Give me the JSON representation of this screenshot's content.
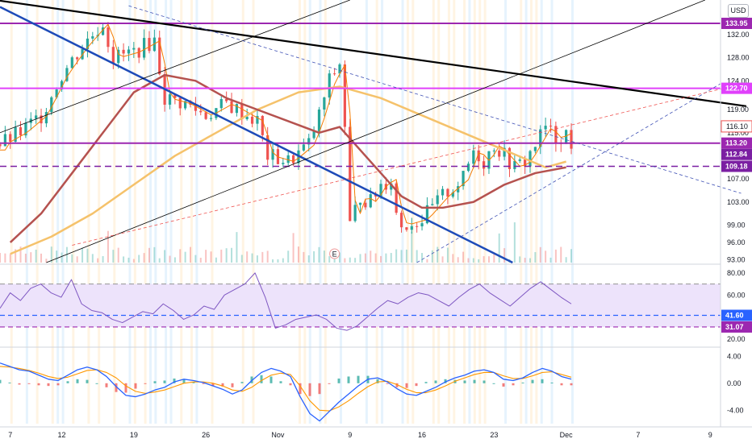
{
  "currency_button": "USD",
  "colors": {
    "candle_up": "#26a69a",
    "candle_down": "#ef5350",
    "ma_fast": "#f57c00",
    "ma_mid": "#b5524f",
    "ma_slow": "#f5c26b",
    "purple": "#9c27b0",
    "magenta": "#e040fb",
    "blue_trend": "#1e4bb8",
    "black_trend": "#000000",
    "rsi_line": "#7e57c2",
    "rsi_band": "#ede3fb",
    "macd_line": "#2962ff",
    "signal_line": "#ff9800"
  },
  "chart_data": [
    {
      "type": "candlestick",
      "panel": "price",
      "y_axis_ticks": [
        93.0,
        96.0,
        99.0,
        103.0,
        107.0,
        115.0,
        119.0,
        124.0,
        128.0,
        132.0
      ],
      "ylim": [
        92.5,
        138
      ],
      "x_axis_labels": [
        "7",
        "12",
        "19",
        "26",
        "Nov",
        "9",
        "16",
        "23",
        "Dec",
        "7",
        "9"
      ],
      "x_axis_units": [
        0,
        5,
        12,
        19,
        26,
        33,
        40,
        47,
        54,
        61,
        68
      ],
      "price_labels": [
        {
          "value": 133.95,
          "text": "133.95",
          "color": "#9c27b0"
        },
        {
          "value": 122.7,
          "text": "122.70",
          "color": "#e040fb"
        },
        {
          "value": 116.1,
          "text": "116.10",
          "color": "#ef5350",
          "style": "outline"
        },
        {
          "value": 113.2,
          "text": "113.20",
          "color": "#9c27b0"
        },
        {
          "value": 112.84,
          "text": "112.84",
          "color": "#7b1fa2"
        },
        {
          "value": 109.18,
          "text": "109.18",
          "color": "#7b1fa2"
        }
      ],
      "horizontal_levels": [
        {
          "value": 133.95,
          "color": "#9c27b0",
          "style": "solid"
        },
        {
          "value": 122.7,
          "color": "#e040fb",
          "style": "solid"
        },
        {
          "value": 113.2,
          "color": "#9c27b0",
          "style": "solid"
        },
        {
          "value": 109.18,
          "color": "#7b1fa2",
          "style": "dashed"
        }
      ],
      "trendlines": [
        {
          "color": "#000000",
          "style": "solid",
          "width": 2.2,
          "from": [
            -3.5,
            138.5
          ],
          "to": [
            71.5,
            119.6
          ]
        },
        {
          "color": "#1e4bb8",
          "style": "solid",
          "width": 2.5,
          "from": [
            -1.0,
            136.8
          ],
          "to": [
            48.8,
            92.5
          ]
        },
        {
          "color": "#000000",
          "style": "solid",
          "width": 0.8,
          "from": [
            -1.0,
            115.0
          ],
          "to": [
            33.0,
            138.0
          ]
        },
        {
          "color": "#000000",
          "style": "solid",
          "width": 0.8,
          "from": [
            3.5,
            92.5
          ],
          "to": [
            67.5,
            138.0
          ]
        },
        {
          "color": "#3f51b5",
          "style": "dashed",
          "width": 0.8,
          "from": [
            11.5,
            137.0
          ],
          "to": [
            71.0,
            104.5
          ]
        },
        {
          "color": "#3f51b5",
          "style": "dashed",
          "width": 0.8,
          "from": [
            39.5,
            92.5
          ],
          "to": [
            69.0,
            123.5
          ]
        },
        {
          "color": "#ef5350",
          "style": "dashed",
          "width": 0.8,
          "from": [
            6.0,
            95.5
          ],
          "to": [
            70.0,
            123.0
          ]
        }
      ],
      "series": [
        {
          "name": "",
          "color": "#f57c00",
          "values": []
        },
        {
          "name": "",
          "color": "#b5524f",
          "x": [
            0,
            3,
            6,
            9,
            12,
            15,
            18,
            21,
            24,
            27,
            30,
            32,
            34,
            36,
            38,
            40,
            42,
            45,
            48,
            51,
            54
          ],
          "values": [
            96,
            101,
            108,
            115,
            122,
            125,
            124,
            121,
            119,
            117,
            115,
            116,
            112,
            108,
            104,
            102,
            102,
            103,
            106,
            108,
            109
          ]
        },
        {
          "name": "",
          "color": "#f5c26b",
          "x": [
            0,
            4,
            8,
            12,
            16,
            20,
            24,
            28,
            32,
            36,
            40,
            44,
            48,
            52,
            54
          ],
          "values": [
            94,
            97,
            101,
            106,
            111,
            115,
            119,
            122,
            123,
            121,
            118,
            115,
            112,
            109,
            110
          ]
        }
      ],
      "volume_marker": "E"
    },
    {
      "type": "line",
      "panel": "rsi",
      "y_axis_ticks": [
        20.0,
        60.0,
        80.0
      ],
      "ylim": [
        15,
        85
      ],
      "band": [
        31.07,
        70
      ],
      "price_labels": [
        {
          "value": 41.6,
          "text": "41.60",
          "color": "#2962ff"
        },
        {
          "value": 31.07,
          "text": "31.07",
          "color": "#9c27b0"
        }
      ],
      "levels": [
        {
          "value": 41.6,
          "color": "#2962ff",
          "style": "dashed"
        },
        {
          "value": 31.07,
          "color": "#9c27b0",
          "style": "dashed"
        },
        {
          "value": 70,
          "color": "#9e9e9e",
          "style": "dashed"
        }
      ],
      "series": [
        {
          "name": "",
          "color": "#7e57c2",
          "values": [
            48,
            62,
            55,
            66,
            70,
            62,
            58,
            74,
            52,
            46,
            44,
            38,
            35,
            40,
            45,
            43,
            52,
            46,
            38,
            42,
            50,
            47,
            60,
            65,
            70,
            80,
            58,
            30,
            33,
            38,
            40,
            42,
            38,
            30,
            28,
            32,
            40,
            48,
            55,
            52,
            58,
            62,
            60,
            55,
            50,
            58,
            65,
            70,
            62,
            56,
            50,
            58,
            66,
            72,
            65,
            58,
            52
          ]
        }
      ]
    },
    {
      "type": "line",
      "panel": "macd",
      "y_axis_ticks": [
        -4.0,
        0.0,
        4.0
      ],
      "ylim": [
        -6,
        5
      ],
      "series": [
        {
          "name": "",
          "color": "#2962ff",
          "values": [
            3,
            2.5,
            2.0,
            1.8,
            1.2,
            0.6,
            0.4,
            1.2,
            2.0,
            2.4,
            2.0,
            1.0,
            -0.5,
            -1.8,
            -2.0,
            -1.6,
            -1.0,
            -0.6,
            0.2,
            0.6,
            0.4,
            0.1,
            -0.4,
            -0.9,
            -1.6,
            -1.0,
            0.4,
            1.6,
            2.2,
            1.8,
            1.0,
            -2.0,
            -4.5,
            -5.6,
            -4.2,
            -2.8,
            -1.6,
            -0.4,
            0.6,
            0.8,
            0.2,
            -0.8,
            -1.6,
            -1.8,
            -1.2,
            -0.6,
            0.2,
            0.8,
            1.2,
            1.8,
            2.0,
            1.6,
            0.6,
            0.4,
            0.8,
            1.6,
            2.2,
            1.8,
            1.0,
            0.6
          ]
        },
        {
          "name": "",
          "color": "#ff9800",
          "values": [
            2.5,
            2.4,
            2.2,
            1.9,
            1.5,
            1.0,
            0.7,
            0.9,
            1.4,
            1.9,
            2.0,
            1.6,
            0.8,
            -0.4,
            -1.2,
            -1.5,
            -1.3,
            -1.0,
            -0.5,
            0.0,
            0.2,
            0.2,
            0.0,
            -0.4,
            -1.0,
            -1.2,
            -0.6,
            0.4,
            1.2,
            1.5,
            1.3,
            -0.4,
            -2.6,
            -4.0,
            -4.1,
            -3.5,
            -2.6,
            -1.5,
            -0.5,
            0.2,
            0.3,
            -0.2,
            -0.9,
            -1.4,
            -1.4,
            -1.0,
            -0.4,
            0.3,
            0.8,
            1.3,
            1.6,
            1.6,
            1.1,
            0.7,
            0.7,
            1.1,
            1.6,
            1.7,
            1.3,
            0.9
          ]
        }
      ]
    }
  ]
}
